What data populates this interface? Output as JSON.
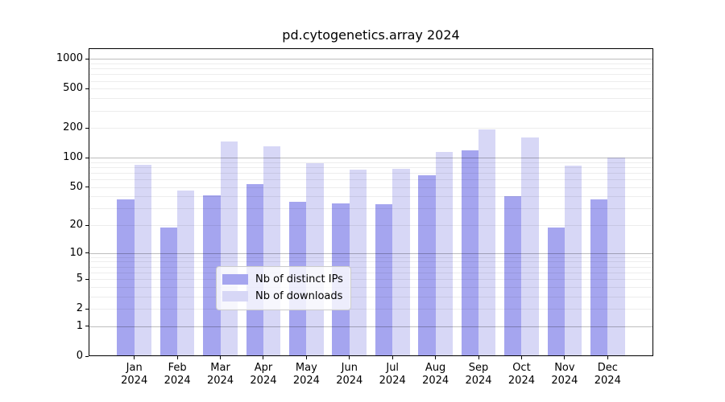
{
  "title": "pd.cytogenetics.array 2024",
  "colors": {
    "ips": "#a5a5ef",
    "downloads": "#d7d7f6",
    "grid_major": "rgba(0,0,0,0.26)",
    "grid_minor": "rgba(0,0,0,0.07)",
    "axis": "#000000",
    "legend_border": "#cccccc"
  },
  "legend": {
    "items": [
      {
        "key": "ips",
        "label": "Nb of distinct IPs"
      },
      {
        "key": "downloads",
        "label": "Nb of downloads"
      }
    ]
  },
  "chart_data": {
    "type": "bar",
    "title": "pd.cytogenetics.array 2024",
    "categories": [
      "Jan",
      "Feb",
      "Mar",
      "Apr",
      "May",
      "Jun",
      "Jul",
      "Aug",
      "Sep",
      "Oct",
      "Nov",
      "Dec"
    ],
    "category_year": "2024",
    "series": [
      {
        "name": "Nb of distinct IPs",
        "values": [
          37,
          19,
          41,
          54,
          35,
          34,
          33,
          66,
          118,
          40,
          19,
          37
        ]
      },
      {
        "name": "Nb of downloads",
        "values": [
          84,
          46,
          147,
          130,
          88,
          75,
          77,
          115,
          192,
          162,
          83,
          101
        ]
      }
    ],
    "y_scale": "log1p",
    "ylim": [
      0,
      1285
    ],
    "y_ticks": [
      0,
      1,
      2,
      5,
      10,
      20,
      50,
      100,
      200,
      500,
      1000
    ],
    "y_major_gridlines": [
      1,
      10,
      100,
      1000
    ],
    "grid": "both",
    "legend_position": "lower center",
    "xlabel": "",
    "ylabel": ""
  }
}
